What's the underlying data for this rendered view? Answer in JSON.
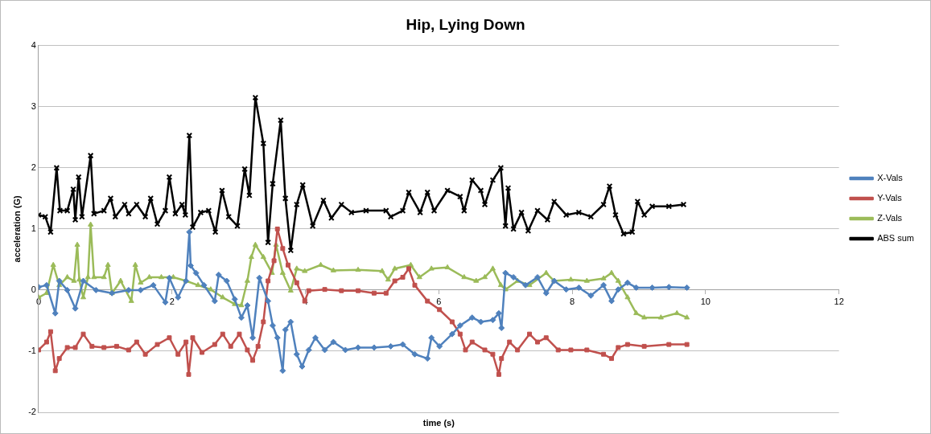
{
  "chart_data": {
    "type": "line",
    "title": "Hip, Lying Down",
    "xlabel": "time (s)",
    "ylabel": "acceleration (G)",
    "xlim": [
      0,
      12
    ],
    "xticks": [
      0,
      2,
      4,
      6,
      8,
      10,
      12
    ],
    "ylim": [
      -2,
      4
    ],
    "yticks": [
      -2,
      -1,
      0,
      1,
      2,
      3,
      4
    ],
    "grid": "y",
    "legend": "right",
    "line_style": "solid",
    "series": [
      {
        "name": "X-Vals",
        "color": "#4f81bd",
        "marker": "diamond",
        "x": [
          0,
          0.12,
          0.25,
          0.31,
          0.43,
          0.55,
          0.67,
          0.86,
          1.1,
          1.35,
          1.53,
          1.72,
          1.9,
          1.96,
          2.09,
          2.21,
          2.26,
          2.28,
          2.36,
          2.48,
          2.64,
          2.7,
          2.82,
          2.94,
          3.04,
          3.13,
          3.21,
          3.31,
          3.44,
          3.51,
          3.58,
          3.66,
          3.7,
          3.78,
          3.87,
          3.95,
          4.05,
          4.15,
          4.29,
          4.42,
          4.6,
          4.79,
          5.03,
          5.28,
          5.46,
          5.64,
          5.83,
          5.89,
          6.01,
          6.2,
          6.32,
          6.5,
          6.63,
          6.81,
          6.9,
          6.94,
          7.0,
          7.12,
          7.3,
          7.48,
          7.61,
          7.73,
          7.91,
          8.1,
          8.28,
          8.47,
          8.59,
          8.69,
          8.83,
          8.96,
          9.2,
          9.45,
          9.72
        ],
        "values": [
          0.05,
          0.08,
          -0.38,
          0.15,
          0,
          -0.3,
          0.15,
          0,
          -0.05,
          0,
          0,
          0.08,
          -0.2,
          0.2,
          -0.12,
          0.15,
          0.95,
          0.4,
          0.28,
          0.08,
          -0.18,
          0.25,
          0.15,
          -0.15,
          -0.45,
          -0.25,
          -0.78,
          0.2,
          -0.18,
          -0.58,
          -0.78,
          -1.32,
          -0.65,
          -0.52,
          -1.05,
          -1.25,
          -0.98,
          -0.78,
          -0.98,
          -0.85,
          -0.98,
          -0.94,
          -0.94,
          -0.92,
          -0.89,
          -1.05,
          -1.12,
          -0.78,
          -0.92,
          -0.72,
          -0.58,
          -0.45,
          -0.52,
          -0.49,
          -0.38,
          -0.62,
          0.28,
          0.21,
          0.08,
          0.21,
          -0.05,
          0.15,
          0.01,
          0.04,
          -0.09,
          0.08,
          -0.18,
          0.01,
          0.12,
          0.04,
          0.04,
          0.05,
          0.04
        ]
      },
      {
        "name": "Y-Vals",
        "color": "#c0504d",
        "marker": "square",
        "x": [
          0,
          0.12,
          0.18,
          0.25,
          0.31,
          0.43,
          0.55,
          0.67,
          0.8,
          0.98,
          1.17,
          1.35,
          1.47,
          1.6,
          1.78,
          1.96,
          2.09,
          2.21,
          2.25,
          2.31,
          2.45,
          2.64,
          2.76,
          2.88,
          3.01,
          3.13,
          3.21,
          3.29,
          3.37,
          3.44,
          3.53,
          3.58,
          3.66,
          3.74,
          3.87,
          3.99,
          4.05,
          4.29,
          4.54,
          4.79,
          5.03,
          5.21,
          5.34,
          5.46,
          5.55,
          5.64,
          5.83,
          6.01,
          6.2,
          6.32,
          6.4,
          6.5,
          6.69,
          6.81,
          6.9,
          6.94,
          7.06,
          7.18,
          7.36,
          7.48,
          7.61,
          7.79,
          7.98,
          8.22,
          8.47,
          8.59,
          8.69,
          8.83,
          9.08,
          9.45,
          9.72
        ],
        "values": [
          -0.98,
          -0.85,
          -0.68,
          -1.32,
          -1.12,
          -0.94,
          -0.94,
          -0.72,
          -0.92,
          -0.94,
          -0.92,
          -0.98,
          -0.85,
          -1.05,
          -0.89,
          -0.78,
          -1.05,
          -0.85,
          -1.38,
          -0.78,
          -1.02,
          -0.89,
          -0.72,
          -0.92,
          -0.72,
          -0.98,
          -1.15,
          -0.92,
          -0.52,
          0.15,
          0.48,
          1.0,
          0.68,
          0.41,
          0.12,
          -0.18,
          -0.01,
          0.01,
          -0.01,
          -0.01,
          -0.05,
          -0.05,
          0.15,
          0.21,
          0.35,
          0.08,
          -0.18,
          -0.32,
          -0.52,
          -0.72,
          -0.98,
          -0.85,
          -0.98,
          -1.05,
          -1.38,
          -1.12,
          -0.85,
          -0.98,
          -0.72,
          -0.85,
          -0.78,
          -0.98,
          -0.98,
          -0.98,
          -1.05,
          -1.12,
          -0.94,
          -0.89,
          -0.92,
          -0.89,
          -0.89
        ]
      },
      {
        "name": "Z-Vals",
        "color": "#9bbb59",
        "marker": "triangle",
        "x": [
          0,
          0.12,
          0.22,
          0.31,
          0.43,
          0.53,
          0.58,
          0.61,
          0.67,
          0.74,
          0.78,
          0.83,
          0.98,
          1.04,
          1.1,
          1.23,
          1.39,
          1.45,
          1.53,
          1.66,
          1.84,
          2.02,
          2.21,
          2.39,
          2.58,
          2.76,
          2.94,
          3.04,
          3.13,
          3.19,
          3.25,
          3.37,
          3.5,
          3.56,
          3.66,
          3.78,
          3.87,
          3.99,
          4.23,
          4.42,
          4.79,
          5.15,
          5.24,
          5.34,
          5.58,
          5.71,
          5.89,
          6.13,
          6.38,
          6.56,
          6.69,
          6.81,
          6.93,
          7.0,
          7.18,
          7.36,
          7.61,
          7.73,
          7.98,
          8.22,
          8.47,
          8.59,
          8.69,
          8.83,
          8.96,
          9.08,
          9.33,
          9.57,
          9.72
        ],
        "values": [
          -0.12,
          -0.05,
          0.41,
          0.08,
          0.21,
          0.15,
          0.74,
          0.17,
          -0.12,
          0.21,
          1.07,
          0.21,
          0.21,
          0.41,
          -0.05,
          0.15,
          -0.18,
          0.41,
          0.12,
          0.21,
          0.21,
          0.21,
          0.15,
          0.08,
          0.01,
          -0.12,
          -0.23,
          -0.25,
          0.15,
          0.54,
          0.74,
          0.54,
          0.28,
          0.74,
          0.28,
          -0.01,
          0.35,
          0.31,
          0.41,
          0.32,
          0.33,
          0.31,
          0.17,
          0.35,
          0.41,
          0.21,
          0.35,
          0.37,
          0.21,
          0.15,
          0.21,
          0.35,
          0.08,
          0.01,
          0.15,
          0.08,
          0.28,
          0.15,
          0.17,
          0.15,
          0.19,
          0.28,
          0.15,
          -0.12,
          -0.38,
          -0.45,
          -0.45,
          -0.38,
          -0.45
        ]
      },
      {
        "name": "ABS sum",
        "color": "#000000",
        "marker": "cross",
        "x": [
          0,
          0.1,
          0.18,
          0.27,
          0.32,
          0.43,
          0.52,
          0.55,
          0.6,
          0.65,
          0.78,
          0.83,
          0.98,
          1.08,
          1.15,
          1.29,
          1.35,
          1.47,
          1.6,
          1.68,
          1.78,
          1.9,
          1.96,
          2.05,
          2.15,
          2.2,
          2.26,
          2.31,
          2.43,
          2.55,
          2.65,
          2.75,
          2.85,
          2.98,
          3.09,
          3.16,
          3.25,
          3.37,
          3.44,
          3.51,
          3.63,
          3.7,
          3.78,
          3.87,
          3.96,
          4.11,
          4.27,
          4.39,
          4.54,
          4.69,
          4.91,
          5.21,
          5.28,
          5.46,
          5.55,
          5.72,
          5.83,
          5.93,
          6.13,
          6.32,
          6.38,
          6.5,
          6.63,
          6.69,
          6.81,
          6.93,
          7.0,
          7.04,
          7.12,
          7.24,
          7.34,
          7.48,
          7.63,
          7.73,
          7.91,
          8.1,
          8.28,
          8.47,
          8.56,
          8.65,
          8.77,
          8.9,
          8.98,
          9.08,
          9.2,
          9.45,
          9.67
        ],
        "values": [
          1.23,
          1.2,
          0.95,
          2.0,
          1.3,
          1.3,
          1.65,
          1.15,
          1.85,
          1.2,
          2.2,
          1.25,
          1.3,
          1.5,
          1.2,
          1.4,
          1.25,
          1.4,
          1.2,
          1.5,
          1.08,
          1.3,
          1.85,
          1.25,
          1.4,
          1.23,
          2.53,
          1.03,
          1.27,
          1.3,
          0.95,
          1.63,
          1.2,
          1.05,
          1.98,
          1.55,
          3.15,
          2.4,
          0.78,
          1.74,
          2.78,
          1.5,
          0.65,
          1.4,
          1.72,
          1.05,
          1.47,
          1.18,
          1.4,
          1.27,
          1.3,
          1.3,
          1.2,
          1.3,
          1.6,
          1.27,
          1.6,
          1.3,
          1.63,
          1.53,
          1.3,
          1.8,
          1.63,
          1.4,
          1.8,
          2.0,
          1.05,
          1.67,
          1.0,
          1.27,
          0.97,
          1.3,
          1.15,
          1.45,
          1.23,
          1.27,
          1.2,
          1.4,
          1.7,
          1.23,
          0.92,
          0.95,
          1.45,
          1.23,
          1.37,
          1.37,
          1.4
        ]
      }
    ]
  }
}
